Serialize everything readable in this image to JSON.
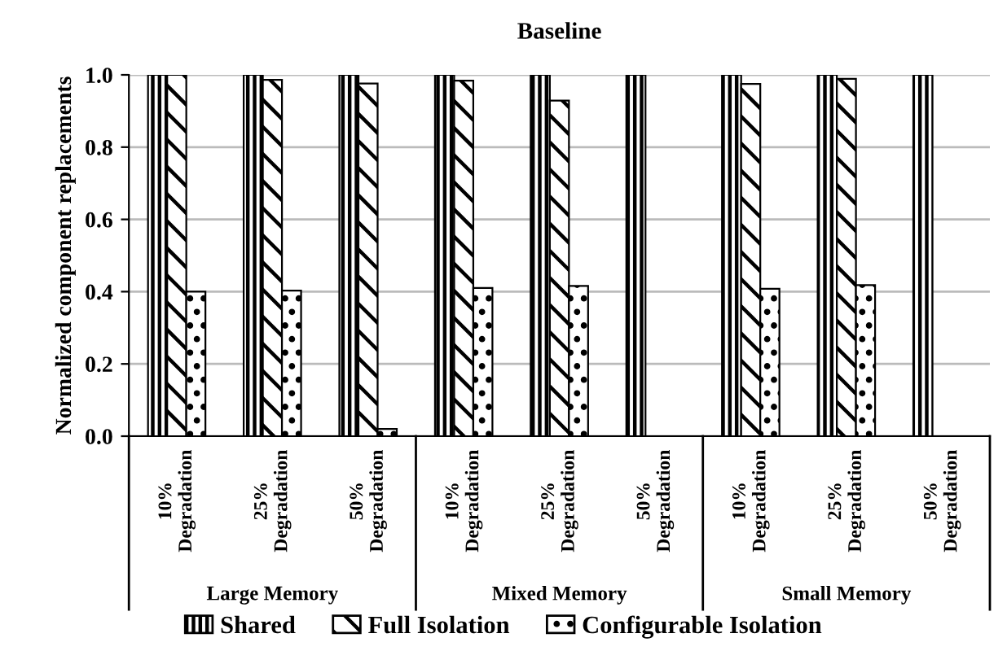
{
  "chart_data": {
    "type": "bar",
    "title": "Baseline",
    "ylabel": "Normalized component replacements",
    "categories": [
      "10%\nDegradation",
      "25%\nDegradation",
      "50%\nDegradation",
      "10%\nDegradation",
      "25%\nDegradation",
      "50%\nDegradation",
      "10%\nDegradation",
      "25%\nDegradation",
      "50%\nDegradation"
    ],
    "series": [
      {
        "name": "Shared",
        "color": "#000000",
        "values": [
          1.0,
          1.0,
          1.0,
          1.0,
          1.0,
          1.0,
          1.0,
          1.0,
          1.0
        ]
      },
      {
        "name": "Full Isolation",
        "color": "#000000",
        "values": [
          1.0,
          0.986,
          0.976,
          0.984,
          0.929,
          0,
          0.975,
          0.989,
          0
        ]
      },
      {
        "name": "Configurable Isolation",
        "color": "#000000",
        "values": [
          0.4,
          0.403,
          0.02,
          0.41,
          0.416,
          0,
          0.408,
          0.418,
          0
        ]
      }
    ],
    "annotations": [
      "Large Memory",
      "Mixed Memory",
      "Small Memory"
    ],
    "ylim": [
      0,
      1.0
    ],
    "yticks": [
      {
        "value": 0,
        "label": "0.0"
      },
      {
        "value": 0.2,
        "label": "0.2"
      },
      {
        "value": 0.4,
        "label": "0.4"
      },
      {
        "value": 0.6,
        "label": "0.6"
      },
      {
        "value": 0.8,
        "label": "0.8"
      },
      {
        "value": 1.0,
        "label": "1.0"
      }
    ],
    "grid": "y",
    "legend": "bottom"
  }
}
